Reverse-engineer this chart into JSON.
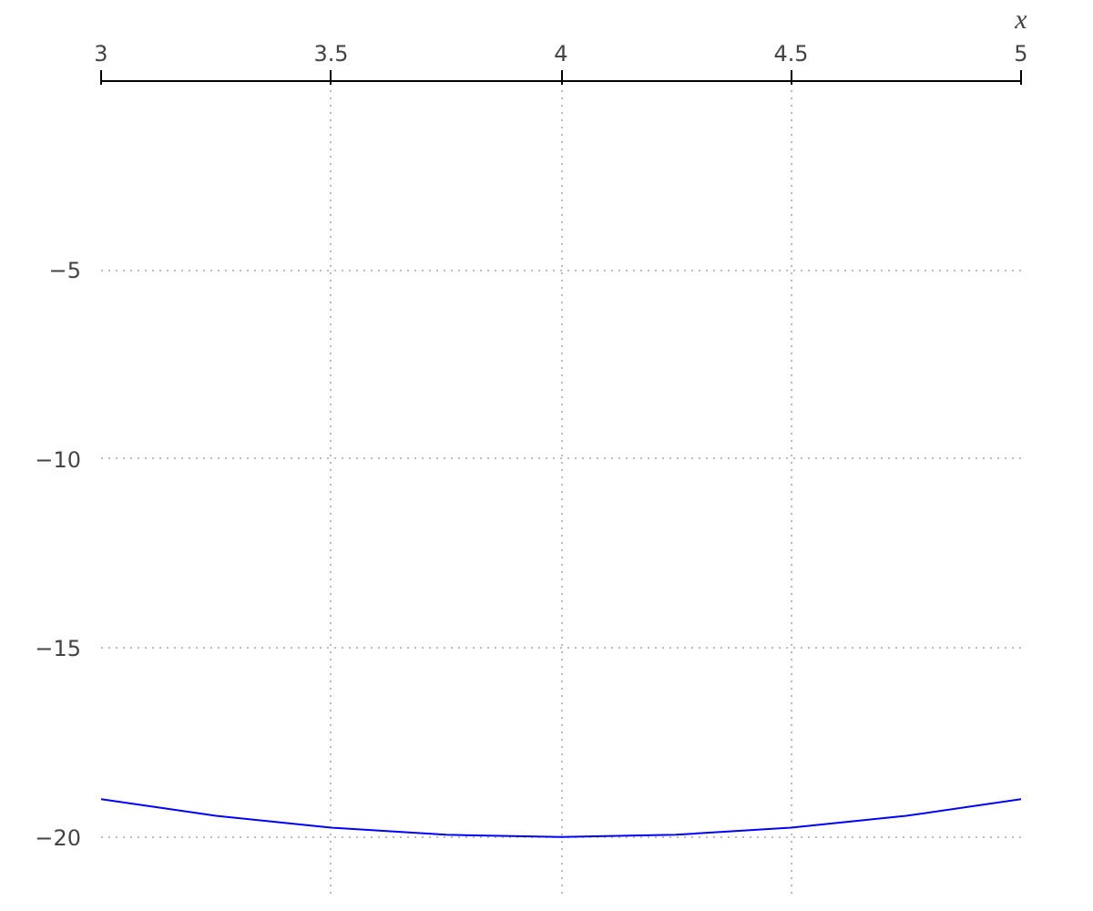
{
  "chart_data": {
    "type": "line",
    "xlabel": "x",
    "x": [
      3,
      3.25,
      3.5,
      3.75,
      4,
      4.25,
      4.5,
      4.75,
      5
    ],
    "series": [
      {
        "color": "#0000ff",
        "values": [
          -19,
          -19.44,
          -19.75,
          -19.94,
          -20,
          -19.94,
          -19.75,
          -19.44,
          -19
        ]
      }
    ],
    "xlim": [
      3,
      5
    ],
    "ylim": [
      -21.5,
      0
    ],
    "xticks": [
      3,
      3.5,
      4,
      4.5,
      5
    ],
    "yticks": [
      -5,
      -10,
      -15,
      -20
    ],
    "grid": true
  }
}
